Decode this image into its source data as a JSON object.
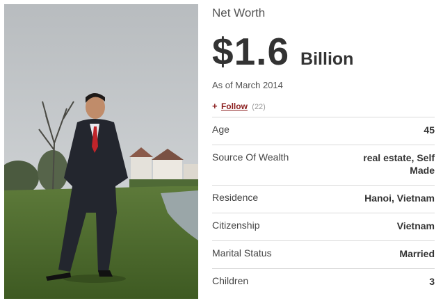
{
  "photo": {
    "alt_name": "profile-photo"
  },
  "net_worth": {
    "label": "Net Worth",
    "amount": "$1.6",
    "unit": "Billion",
    "as_of": "As of March 2014"
  },
  "follow": {
    "plus": "+",
    "label": "Follow",
    "count": "(22)"
  },
  "stats": [
    {
      "key": "Age",
      "value": "45"
    },
    {
      "key": "Source Of Wealth",
      "value": "real estate, Self Made"
    },
    {
      "key": "Residence",
      "value": "Hanoi, Vietnam"
    },
    {
      "key": "Citizenship",
      "value": "Vietnam"
    },
    {
      "key": "Marital Status",
      "value": "Married"
    },
    {
      "key": "Children",
      "value": "3"
    }
  ],
  "colors": {
    "accent": "#8a1b1b",
    "text": "#333333",
    "divider": "#d9d9d9"
  }
}
